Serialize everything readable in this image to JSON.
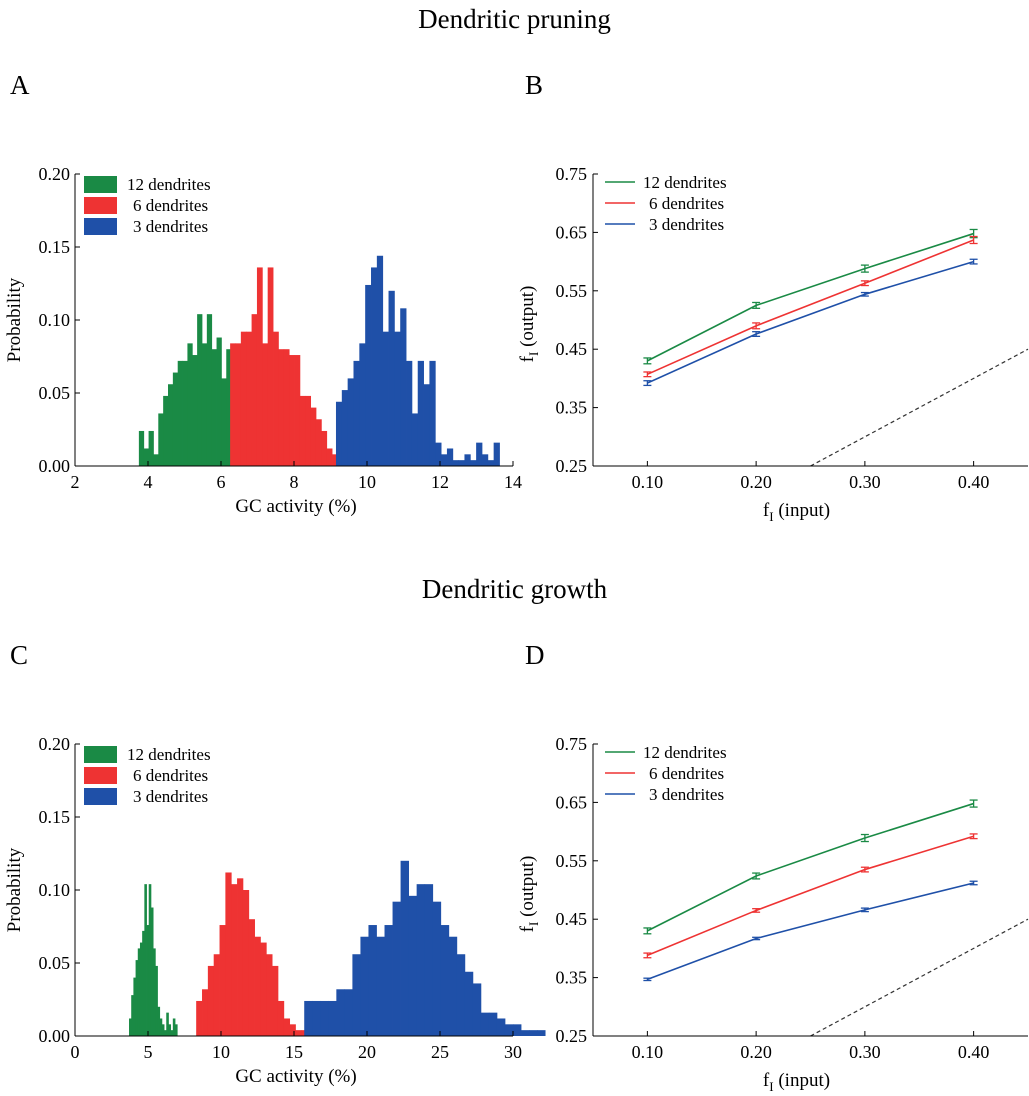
{
  "titles": {
    "top": "Dendritic pruning",
    "bottom": "Dendritic growth"
  },
  "panel_letters": [
    "A",
    "B",
    "C",
    "D"
  ],
  "colors": {
    "12_dendrites": "#1a8a45",
    "6_dendrites": "#ee3333",
    "3_dendrites": "#1f50a8",
    "diagonal": "#333333"
  },
  "chart_data": [
    {
      "panel": "A",
      "type": "bar",
      "xlabel": "GC activity (%)",
      "ylabel": "Probability",
      "xlim": [
        2,
        14
      ],
      "ylim": [
        0,
        0.2
      ],
      "xticks": [
        "2",
        "4",
        "6",
        "8",
        "10",
        "12",
        "14"
      ],
      "yticks": [
        "0.00",
        "0.05",
        "0.10",
        "0.15",
        "0.20"
      ],
      "legend_position": "top-left",
      "series": [
        {
          "name": "12 dendrites",
          "color": "#1a8a45",
          "bin_start": 3.75,
          "bin_width": 0.133,
          "values": [
            0.024,
            0.012,
            0.024,
            0.008,
            0.036,
            0.048,
            0.056,
            0.064,
            0.072,
            0.072,
            0.084,
            0.076,
            0.104,
            0.084,
            0.104,
            0.08,
            0.088,
            0.06,
            0.08,
            0.076,
            0.024,
            0.036,
            0.024,
            0.016,
            0.008,
            0.012,
            0.004
          ]
        },
        {
          "name": "6 dendrites",
          "color": "#ee3333",
          "bin_start": 6.25,
          "bin_width": 0.147,
          "values": [
            0.084,
            0.084,
            0.092,
            0.092,
            0.104,
            0.136,
            0.084,
            0.136,
            0.092,
            0.08,
            0.08,
            0.076,
            0.076,
            0.048,
            0.048,
            0.04,
            0.032,
            0.024,
            0.012,
            0.008,
            0.008,
            0.004,
            0.004,
            0.004,
            0.004,
            0.004,
            0.004,
            0.004
          ]
        },
        {
          "name": "3 dendrites",
          "color": "#1f50a8",
          "bin_start": 9.15,
          "bin_width": 0.16,
          "values": [
            0.044,
            0.052,
            0.06,
            0.072,
            0.084,
            0.124,
            0.136,
            0.144,
            0.092,
            0.12,
            0.092,
            0.108,
            0.072,
            0.036,
            0.072,
            0.056,
            0.072,
            0.016,
            0.008,
            0.012,
            0.004,
            0.004,
            0.008,
            0.004,
            0.016,
            0.008,
            0.004,
            0.016
          ]
        }
      ]
    },
    {
      "panel": "B",
      "type": "line",
      "xlabel": "f",
      "xlabel_sub": "I",
      "xlabel_rest": " (input)",
      "ylabel": "f",
      "ylabel_sub": "I",
      "ylabel_rest": " (output)",
      "x": [
        0.1,
        0.2,
        0.3,
        0.4
      ],
      "xticks": [
        "0.10",
        "0.20",
        "0.30",
        "0.40"
      ],
      "yticks": [
        "0.25",
        "0.35",
        "0.45",
        "0.55",
        "0.65",
        "0.75"
      ],
      "xlim": [
        0.05,
        0.45
      ],
      "ylim": [
        0.25,
        0.75
      ],
      "legend_position": "top-left",
      "series": [
        {
          "name": "12 dendrites",
          "color": "#1a8a45",
          "values": [
            0.43,
            0.525,
            0.588,
            0.648
          ],
          "errors": [
            0.005,
            0.005,
            0.006,
            0.007
          ]
        },
        {
          "name": "6 dendrites",
          "color": "#ee3333",
          "values": [
            0.407,
            0.49,
            0.563,
            0.637
          ],
          "errors": [
            0.004,
            0.005,
            0.004,
            0.006
          ]
        },
        {
          "name": "3 dendrites",
          "color": "#1f50a8",
          "values": [
            0.392,
            0.476,
            0.544,
            0.6
          ],
          "errors": [
            0.004,
            0.004,
            0.003,
            0.004
          ]
        }
      ],
      "reference_line": {
        "x": [
          0.25,
          0.45
        ],
        "y": [
          0.25,
          0.45
        ],
        "style": "dashed",
        "color": "#333333"
      }
    },
    {
      "panel": "C",
      "type": "bar",
      "xlabel": "GC activity (%)",
      "ylabel": "Probability",
      "xlim": [
        0,
        30
      ],
      "ylim": [
        0,
        0.2
      ],
      "xticks": [
        "0",
        "5",
        "10",
        "15",
        "20",
        "25",
        "30"
      ],
      "yticks": [
        "0.00",
        "0.05",
        "0.10",
        "0.15",
        "0.20"
      ],
      "legend_position": "top-left",
      "series": [
        {
          "name": "12 dendrites",
          "color": "#1a8a45",
          "bin_start": 3.7,
          "bin_width": 0.15,
          "values": [
            0.012,
            0.028,
            0.04,
            0.052,
            0.06,
            0.064,
            0.072,
            0.104,
            0.076,
            0.104,
            0.088,
            0.06,
            0.048,
            0.02,
            0.012,
            0.008,
            0.004,
            0.016,
            0.008,
            0.004,
            0.012,
            0.008
          ]
        },
        {
          "name": "6 dendrites",
          "color": "#ee3333",
          "bin_start": 8.3,
          "bin_width": 0.4,
          "values": [
            0.024,
            0.032,
            0.048,
            0.056,
            0.076,
            0.112,
            0.104,
            0.108,
            0.1,
            0.08,
            0.068,
            0.064,
            0.056,
            0.048,
            0.024,
            0.012,
            0.008,
            0.004,
            0.004,
            0.012
          ]
        },
        {
          "name": "3 dendrites",
          "color": "#1f50a8",
          "bin_start": 15.7,
          "bin_width": 0.55,
          "values": [
            0.024,
            0.024,
            0.024,
            0.024,
            0.032,
            0.032,
            0.056,
            0.068,
            0.076,
            0.068,
            0.076,
            0.092,
            0.12,
            0.096,
            0.104,
            0.104,
            0.092,
            0.076,
            0.068,
            0.056,
            0.044,
            0.036,
            0.016,
            0.016,
            0.012,
            0.008,
            0.008,
            0.004,
            0.004,
            0.004
          ]
        }
      ]
    },
    {
      "panel": "D",
      "type": "line",
      "xlabel": "f",
      "xlabel_sub": "I",
      "xlabel_rest": " (input)",
      "ylabel": "f",
      "ylabel_sub": "I",
      "ylabel_rest": " (output)",
      "x": [
        0.1,
        0.2,
        0.3,
        0.4
      ],
      "xticks": [
        "0.10",
        "0.20",
        "0.30",
        "0.40"
      ],
      "yticks": [
        "0.25",
        "0.35",
        "0.45",
        "0.55",
        "0.65",
        "0.75"
      ],
      "xlim": [
        0.05,
        0.45
      ],
      "ylim": [
        0.25,
        0.75
      ],
      "legend_position": "top-left",
      "series": [
        {
          "name": "12 dendrites",
          "color": "#1a8a45",
          "values": [
            0.43,
            0.524,
            0.589,
            0.648
          ],
          "errors": [
            0.005,
            0.005,
            0.006,
            0.006
          ]
        },
        {
          "name": "6 dendrites",
          "color": "#ee3333",
          "values": [
            0.388,
            0.465,
            0.535,
            0.592
          ],
          "errors": [
            0.004,
            0.003,
            0.004,
            0.004
          ]
        },
        {
          "name": "3 dendrites",
          "color": "#1f50a8",
          "values": [
            0.347,
            0.417,
            0.466,
            0.512
          ],
          "errors": [
            0.002,
            0.002,
            0.003,
            0.003
          ]
        }
      ],
      "reference_line": {
        "x": [
          0.25,
          0.45
        ],
        "y": [
          0.25,
          0.45
        ],
        "style": "dashed",
        "color": "#333333"
      }
    }
  ]
}
